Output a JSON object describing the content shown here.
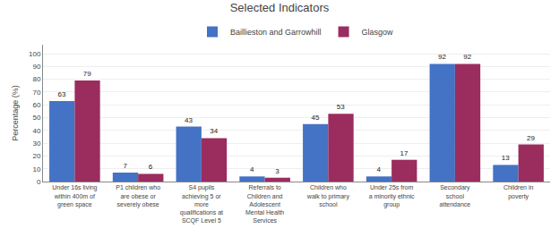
{
  "chart_data": {
    "type": "bar",
    "title": "Selected Indicators",
    "ylabel": "Percentage (%)",
    "categories": [
      "Under 16s living\nwithin 400m of\ngreen space",
      "P1 children who\nare obese or\nseverely obese",
      "S4 pupils\nachieving 5 or\nmore\nqualifications at\nSCQF Level 5",
      "Referrals to\nChildren and\nAdolescent\nMental Health\nServices",
      "Children who\nwalk to primary\nschool",
      "Under 25s from\na minority ethnic\ngroup",
      "Secondary\nschool\nattendance",
      "Children in\npoverty"
    ],
    "series": [
      {
        "name": "Baillieston and Garrowhill",
        "color": "#4472C4",
        "values": [
          63,
          7,
          43,
          4,
          45,
          4,
          92,
          13
        ]
      },
      {
        "name": "Glasgow",
        "color": "#9B2C5E",
        "values": [
          79,
          6,
          34,
          3,
          53,
          17,
          92,
          29
        ]
      }
    ],
    "ylim": [
      0,
      107
    ],
    "yticks": [
      0,
      10,
      20,
      30,
      40,
      50,
      60,
      70,
      80,
      90,
      100
    ],
    "grid": true,
    "data_labels": true,
    "legend": "top"
  }
}
